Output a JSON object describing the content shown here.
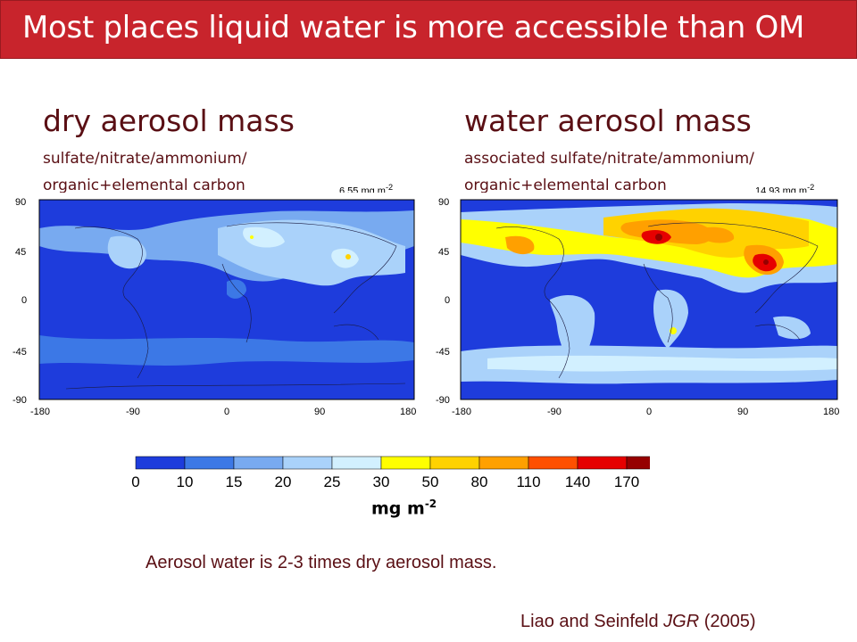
{
  "slide": {
    "title": "Most places liquid water is more accessible than OM",
    "colors": {
      "title_bg": "#c8242c",
      "text_dark_red": "#5a0f14"
    }
  },
  "panels": [
    {
      "heading": "dry aerosol mass",
      "sub1": "sulfate/nitrate/ammonium/",
      "sub2": "organic+elemental carbon",
      "global_total": "6.55 mg m",
      "global_total_exp": "-2"
    },
    {
      "heading": "water aerosol mass",
      "sub1": "associated sulfate/nitrate/ammonium/",
      "sub2": "organic+elemental carbon",
      "global_total": "14.93 mg m",
      "global_total_exp": "-2"
    }
  ],
  "map_axes": {
    "x_ticks": [
      "-180",
      "-90",
      "0",
      "90",
      "180"
    ],
    "y_ticks": [
      "90",
      "45",
      "0",
      "-45",
      "-90"
    ]
  },
  "colorbar": {
    "levels": [
      "0",
      "10",
      "15",
      "20",
      "25",
      "30",
      "50",
      "80",
      "110",
      "140",
      "170"
    ],
    "colors": [
      "#1e3cdc",
      "#3c78e6",
      "#78aaf0",
      "#aad2fa",
      "#d2f0ff",
      "#ffff00",
      "#ffd200",
      "#ffa000",
      "#ff5000",
      "#e60000",
      "#960000"
    ],
    "unit": "mg m",
    "unit_exp": "-2"
  },
  "note": "Aerosol water is 2-3 times dry aerosol mass.",
  "citation": {
    "authors": "Liao and Seinfeld",
    "journal": "JGR",
    "year": "(2005)"
  }
}
